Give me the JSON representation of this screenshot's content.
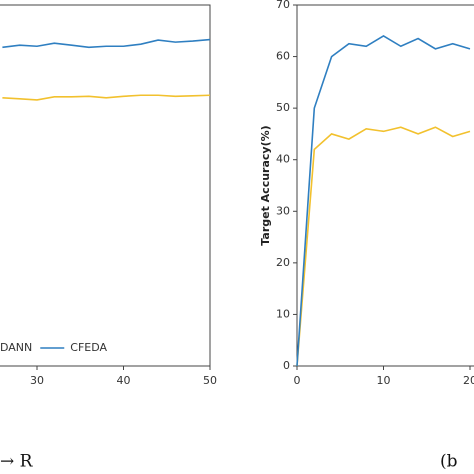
{
  "chart_data": [
    {
      "type": "line",
      "x": [
        26,
        28,
        30,
        32,
        34,
        36,
        38,
        40,
        42,
        44,
        46,
        48,
        50
      ],
      "series": [
        {
          "name": "DANN",
          "color": "#f2c12e",
          "values": [
            52.0,
            51.8,
            51.6,
            52.2,
            52.2,
            52.3,
            52.0,
            52.3,
            52.5,
            52.5,
            52.3,
            52.4,
            52.5
          ]
        },
        {
          "name": "CFEDA",
          "color": "#2f7fc1",
          "values": [
            61.8,
            62.2,
            62.0,
            62.6,
            62.2,
            61.8,
            62.0,
            62.0,
            62.4,
            63.2,
            62.8,
            63.0,
            63.3
          ]
        }
      ],
      "xlim": [
        0,
        50
      ],
      "xticks": [
        30,
        40,
        50
      ],
      "ylim": [
        0,
        70
      ],
      "caption": "→ R"
    },
    {
      "type": "line",
      "x": [
        0,
        2,
        4,
        6,
        8,
        10,
        12,
        14,
        16,
        18,
        20
      ],
      "series": [
        {
          "name": "DANN",
          "color": "#f2c12e",
          "values": [
            0,
            42,
            45,
            44,
            46,
            45.5,
            46.3,
            45,
            46.3,
            44.5,
            45.5
          ]
        },
        {
          "name": "CFEDA",
          "color": "#2f7fc1",
          "values": [
            0,
            50,
            60,
            62.5,
            62,
            64,
            62,
            63.5,
            61.5,
            62.5,
            61.5
          ]
        }
      ],
      "xlim": [
        0,
        50
      ],
      "xticks": [
        0,
        10,
        20
      ],
      "ylim": [
        0,
        70
      ],
      "yticks": [
        0,
        10,
        20,
        30,
        40,
        50,
        60,
        70
      ],
      "y_label": "Target Accuracy(%)",
      "caption": "(b"
    }
  ]
}
